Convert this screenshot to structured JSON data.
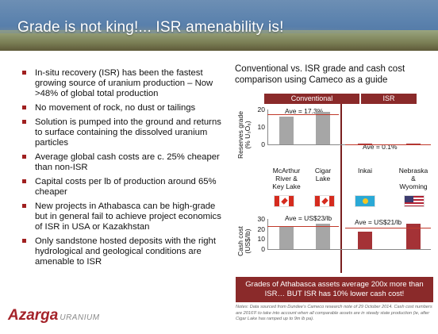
{
  "header": {
    "title": "Grade is not king!... ISR amenability is!"
  },
  "bullets": [
    "In-situ recovery (ISR) has been the fastest growing source of uranium production – Now >48% of global total production",
    "No movement of rock, no dust or tailings",
    "Solution is pumped into the ground and returns to surface containing the dissolved uranium particles",
    "Average global cash costs are c. 25% cheaper than non-ISR",
    "Capital costs per lb of production around 65% cheaper",
    "New projects in Athabasca can be high-grade but in general fail to achieve project economics of ISR in USA or Kazakhstan",
    "Only sandstone hosted deposits with the right hydrological and geological conditions are amenable to ISR"
  ],
  "logo": {
    "main": "Azarga",
    "sub": "URANIUM"
  },
  "chart": {
    "title": "Conventional vs. ISR grade and cash cost comparison using Cameco as a guide",
    "group_conventional": "Conventional",
    "group_isr": "ISR",
    "grade_ylabel_line1": "Reserves grade",
    "grade_ylabel_line2": "(% U₃O₈)",
    "cost_ylabel_line1": "Cash cost",
    "cost_ylabel_line2": "(US$/lb)",
    "grade_ave_conv": "Ave = 17.3%",
    "grade_ave_isr": "Ave = 0.1%",
    "cost_ave_conv": "Ave = US$23/lb",
    "cost_ave_isr": "Ave = US$21/lb",
    "banner": "Grades of Athabasca assets average 200x more than ISR… BUT ISR has 10% lower cash cost!",
    "notes": "Notes: Data sourced from Dundee’s Cameco research note of 29 October 2014. Cash cost numbers are 2016'F to take into account when all comparable assets are in steady state production (ie, after Cigar Lake has ramped up to 9m lb pa).",
    "colors": {
      "conventional_bar": "#a6a6a6",
      "isr_bar": "#a43236",
      "header": "#8a2a2a",
      "ave_line": "#c0392b"
    }
  },
  "chart_data": [
    {
      "type": "bar",
      "categories": [
        "McArthur River & Key Lake",
        "Cigar Lake",
        "Inkai",
        "Nebraska & Wyoming"
      ],
      "category_lines": [
        [
          "McArthur",
          "River &",
          "Key Lake"
        ],
        [
          "Cigar",
          "Lake"
        ],
        [
          "Inkai"
        ],
        [
          "Nebraska",
          "&",
          "Wyoming"
        ]
      ],
      "groups": [
        "Conventional",
        "Conventional",
        "ISR",
        "ISR"
      ],
      "values": [
        16,
        18.5,
        0.1,
        0.1
      ],
      "ylabel": "Reserves grade (% U3O8)",
      "ylim": [
        0,
        20
      ],
      "yticks": [
        0,
        10,
        20
      ],
      "averages": [
        17.3,
        0.1
      ]
    },
    {
      "type": "bar",
      "categories": [
        "McArthur River & Key Lake",
        "Cigar Lake",
        "Inkai",
        "Nebraska & Wyoming"
      ],
      "groups": [
        "Conventional",
        "Conventional",
        "ISR",
        "ISR"
      ],
      "values": [
        22,
        25,
        17,
        25
      ],
      "ylabel": "Cash cost (US$/lb)",
      "ylim": [
        0,
        30
      ],
      "yticks": [
        0,
        10,
        20,
        30
      ],
      "averages": [
        23,
        21
      ]
    }
  ]
}
